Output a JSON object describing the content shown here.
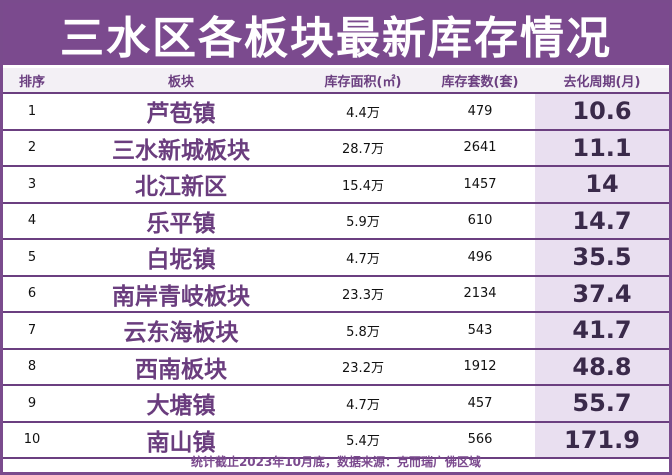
{
  "title": "三水区各板块最新库存情况",
  "columns": {
    "rank": "排序",
    "block": "板块",
    "area": "库存面积(㎡)",
    "units": "库存套数(套)",
    "cycle": "去化周期(月)"
  },
  "rows": [
    {
      "rank": "1",
      "block": "芦苞镇",
      "area": "4.4万",
      "units": "479",
      "cycle": "10.6"
    },
    {
      "rank": "2",
      "block": "三水新城板块",
      "area": "28.7万",
      "units": "2641",
      "cycle": "11.1"
    },
    {
      "rank": "3",
      "block": "北江新区",
      "area": "15.4万",
      "units": "1457",
      "cycle": "14"
    },
    {
      "rank": "4",
      "block": "乐平镇",
      "area": "5.9万",
      "units": "610",
      "cycle": "14.7"
    },
    {
      "rank": "5",
      "block": "白坭镇",
      "area": "4.7万",
      "units": "496",
      "cycle": "35.5"
    },
    {
      "rank": "6",
      "block": "南岸青岐板块",
      "area": "23.3万",
      "units": "2134",
      "cycle": "37.4"
    },
    {
      "rank": "7",
      "block": "云东海板块",
      "area": "5.8万",
      "units": "543",
      "cycle": "41.7"
    },
    {
      "rank": "8",
      "block": "西南板块",
      "area": "23.2万",
      "units": "1912",
      "cycle": "48.8"
    },
    {
      "rank": "9",
      "block": "大塘镇",
      "area": "4.7万",
      "units": "457",
      "cycle": "55.7"
    },
    {
      "rank": "10",
      "block": "南山镇",
      "area": "5.4万",
      "units": "566",
      "cycle": "171.9"
    }
  ],
  "footer": "统计截止2023年10月底，数据来源：克而瑞广佛区域"
}
